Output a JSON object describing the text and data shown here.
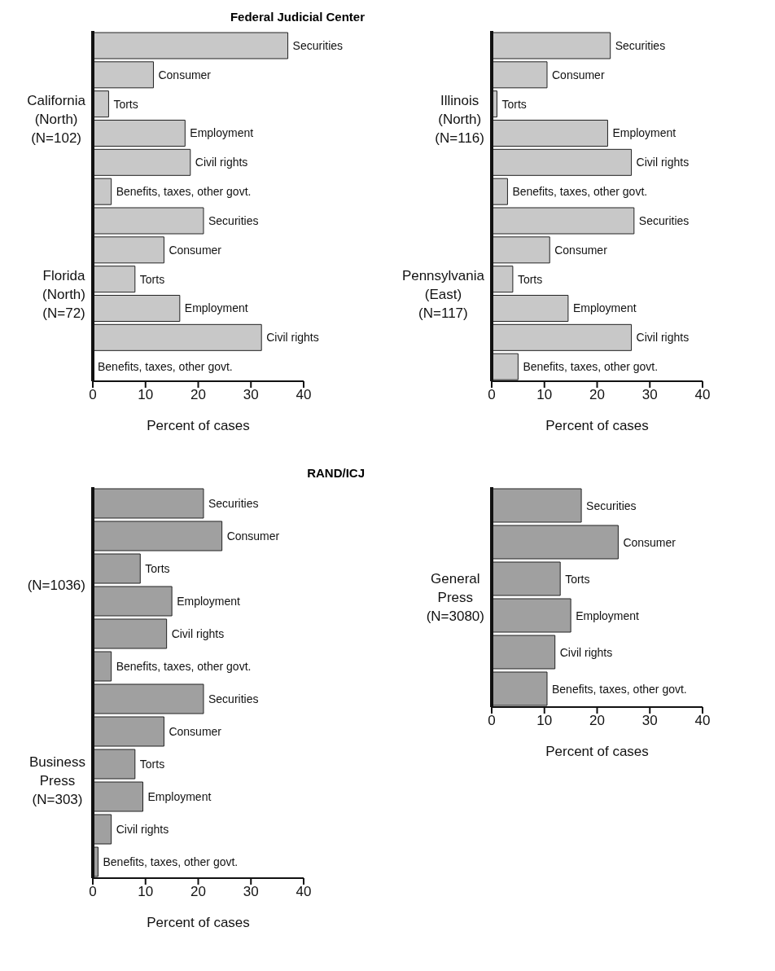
{
  "chart_data": [
    {
      "type": "bar",
      "orientation": "horizontal",
      "title": "Federal Judicial Center",
      "xlabel": "Percent of cases",
      "annotations": [
        "California (North) (N=102)",
        "Florida (North) (N=72)"
      ],
      "categories": [
        "Securities",
        "Consumer",
        "Torts",
        "Employment",
        "Civil rights",
        "Benefits, taxes, other govt.",
        "Securities",
        "Consumer",
        "Torts",
        "Employment",
        "Civil rights",
        "Benefits, taxes, other govt."
      ],
      "values": [
        37,
        11.5,
        3,
        17.5,
        18.5,
        3.5,
        21,
        13.5,
        8,
        16.5,
        32,
        0
      ],
      "color": "#c8c8c8",
      "xlim": [
        0,
        40
      ],
      "xticks": [
        0,
        10,
        20,
        30,
        40
      ]
    },
    {
      "type": "bar",
      "orientation": "horizontal",
      "xlabel": "Percent of cases",
      "annotations": [
        "Illinois (North) (N=116)",
        "Pennsylvania (East) (N=117)"
      ],
      "categories": [
        "Securities",
        "Consumer",
        "Torts",
        "Employment",
        "Civil rights",
        "Benefits, taxes, other govt.",
        "Securities",
        "Consumer",
        "Torts",
        "Employment",
        "Civil rights",
        "Benefits, taxes, other govt."
      ],
      "values": [
        22.5,
        10.5,
        1,
        22,
        26.5,
        3,
        27,
        11,
        4,
        14.5,
        26.5,
        5
      ],
      "color": "#c8c8c8",
      "xlim": [
        0,
        40
      ],
      "xticks": [
        0,
        10,
        20,
        30,
        40
      ]
    },
    {
      "type": "bar",
      "orientation": "horizontal",
      "title": "RAND/ICJ",
      "xlabel": "Percent of cases",
      "annotations": [
        "(N=1036)",
        "Business Press (N=303)"
      ],
      "categories": [
        "Securities",
        "Consumer",
        "Torts",
        "Employment",
        "Civil rights",
        "Benefits, taxes, other govt.",
        "Securities",
        "Consumer",
        "Torts",
        "Employment",
        "Civil rights",
        "Benefits, taxes, other govt."
      ],
      "values": [
        21,
        24.5,
        9,
        15,
        14,
        3.5,
        21,
        13.5,
        8,
        9.5,
        3.5,
        1
      ],
      "color": "#a0a0a0",
      "xlim": [
        0,
        40
      ],
      "xticks": [
        0,
        10,
        20,
        30,
        40
      ]
    },
    {
      "type": "bar",
      "orientation": "horizontal",
      "xlabel": "Percent of cases",
      "annotations": [
        "General Press (N=3080)"
      ],
      "categories": [
        "Securities",
        "Consumer",
        "Torts",
        "Employment",
        "Civil rights",
        "Benefits, taxes, other govt."
      ],
      "values": [
        17,
        24,
        13,
        15,
        12,
        10.5
      ],
      "color": "#a0a0a0",
      "xlim": [
        0,
        40
      ],
      "xticks": [
        0,
        10,
        20,
        30,
        40
      ]
    }
  ]
}
